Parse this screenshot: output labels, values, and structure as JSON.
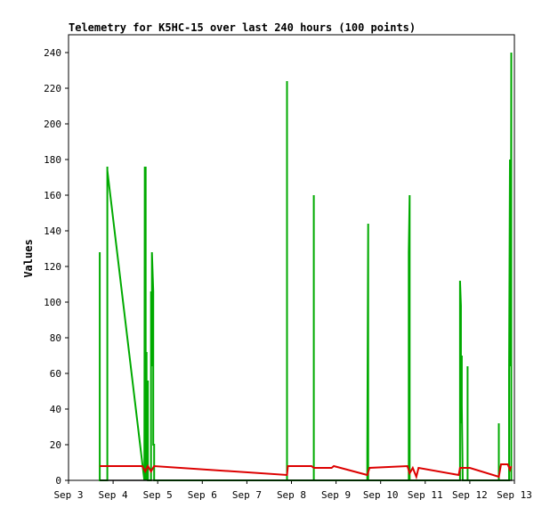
{
  "chart_data": {
    "type": "line",
    "title": "Telemetry for K5HC-15 over last 240 hours (100 points)",
    "ylabel": "Values",
    "xlabel": "",
    "xlim": [
      0,
      10
    ],
    "ylim": [
      0,
      250
    ],
    "x_ticks": [
      {
        "x": 0,
        "label": "Sep 3"
      },
      {
        "x": 1,
        "label": "Sep 4"
      },
      {
        "x": 2,
        "label": "Sep 5"
      },
      {
        "x": 3,
        "label": "Sep 6"
      },
      {
        "x": 4,
        "label": "Sep 7"
      },
      {
        "x": 5,
        "label": "Sep 8"
      },
      {
        "x": 6,
        "label": "Sep 9"
      },
      {
        "x": 7,
        "label": "Sep 10"
      },
      {
        "x": 8,
        "label": "Sep 11"
      },
      {
        "x": 9,
        "label": "Sep 12"
      },
      {
        "x": 10,
        "label": "Sep 13"
      }
    ],
    "y_ticks": [
      0,
      20,
      40,
      60,
      80,
      100,
      120,
      140,
      160,
      180,
      200,
      220,
      240
    ],
    "grid": false,
    "legend": "none",
    "series": [
      {
        "color": "#00aa00",
        "points": [
          [
            0.7,
            0
          ],
          [
            0.7,
            128
          ],
          [
            0.7,
            64
          ],
          [
            0.7,
            0
          ],
          [
            0.87,
            0
          ],
          [
            0.87,
            176
          ],
          [
            0.87,
            174
          ],
          [
            1.7,
            0
          ],
          [
            1.71,
            176
          ],
          [
            1.71,
            0
          ],
          [
            1.73,
            176
          ],
          [
            1.73,
            40
          ],
          [
            1.75,
            72
          ],
          [
            1.75,
            0
          ],
          [
            1.78,
            56
          ],
          [
            1.78,
            0
          ],
          [
            1.85,
            0
          ],
          [
            1.85,
            106
          ],
          [
            1.87,
            64
          ],
          [
            1.87,
            128
          ],
          [
            1.9,
            106
          ],
          [
            1.9,
            20
          ],
          [
            1.92,
            20
          ],
          [
            1.92,
            0
          ],
          [
            4.9,
            0
          ],
          [
            4.9,
            224
          ],
          [
            4.9,
            0
          ],
          [
            5.5,
            0
          ],
          [
            5.5,
            160
          ],
          [
            5.5,
            0
          ],
          [
            6.7,
            0
          ],
          [
            6.7,
            16
          ],
          [
            6.72,
            144
          ],
          [
            6.72,
            0
          ],
          [
            7.63,
            0
          ],
          [
            7.63,
            128
          ],
          [
            7.65,
            160
          ],
          [
            7.65,
            0
          ],
          [
            8.78,
            0
          ],
          [
            8.78,
            112
          ],
          [
            8.8,
            98
          ],
          [
            8.8,
            32
          ],
          [
            8.82,
            70
          ],
          [
            8.82,
            42
          ],
          [
            8.84,
            0
          ],
          [
            8.95,
            0
          ],
          [
            8.95,
            64
          ],
          [
            8.95,
            0
          ],
          [
            9.65,
            0
          ],
          [
            9.65,
            32
          ],
          [
            9.65,
            0
          ],
          [
            9.88,
            0
          ],
          [
            9.88,
            60
          ],
          [
            9.9,
            180
          ],
          [
            9.92,
            64
          ],
          [
            9.93,
            240
          ],
          [
            9.93,
            0
          ]
        ]
      },
      {
        "color": "#dd0000",
        "points": [
          [
            0.7,
            8
          ],
          [
            1.65,
            8
          ],
          [
            1.72,
            5
          ],
          [
            1.78,
            8
          ],
          [
            1.85,
            5
          ],
          [
            1.92,
            8
          ],
          [
            4.9,
            3
          ],
          [
            4.92,
            8
          ],
          [
            5.45,
            8
          ],
          [
            5.5,
            7
          ],
          [
            5.9,
            7
          ],
          [
            5.95,
            8
          ],
          [
            6.7,
            3
          ],
          [
            6.75,
            7
          ],
          [
            7.6,
            8
          ],
          [
            7.65,
            4
          ],
          [
            7.72,
            7
          ],
          [
            7.8,
            2
          ],
          [
            7.85,
            7
          ],
          [
            8.75,
            3
          ],
          [
            8.78,
            7
          ],
          [
            9.0,
            7
          ],
          [
            9.65,
            2
          ],
          [
            9.7,
            9
          ],
          [
            9.85,
            9
          ],
          [
            9.9,
            6
          ],
          [
            9.93,
            8
          ]
        ]
      },
      {
        "color": "#000000",
        "points": [
          [
            0.7,
            0
          ],
          [
            9.95,
            0
          ]
        ]
      }
    ]
  }
}
